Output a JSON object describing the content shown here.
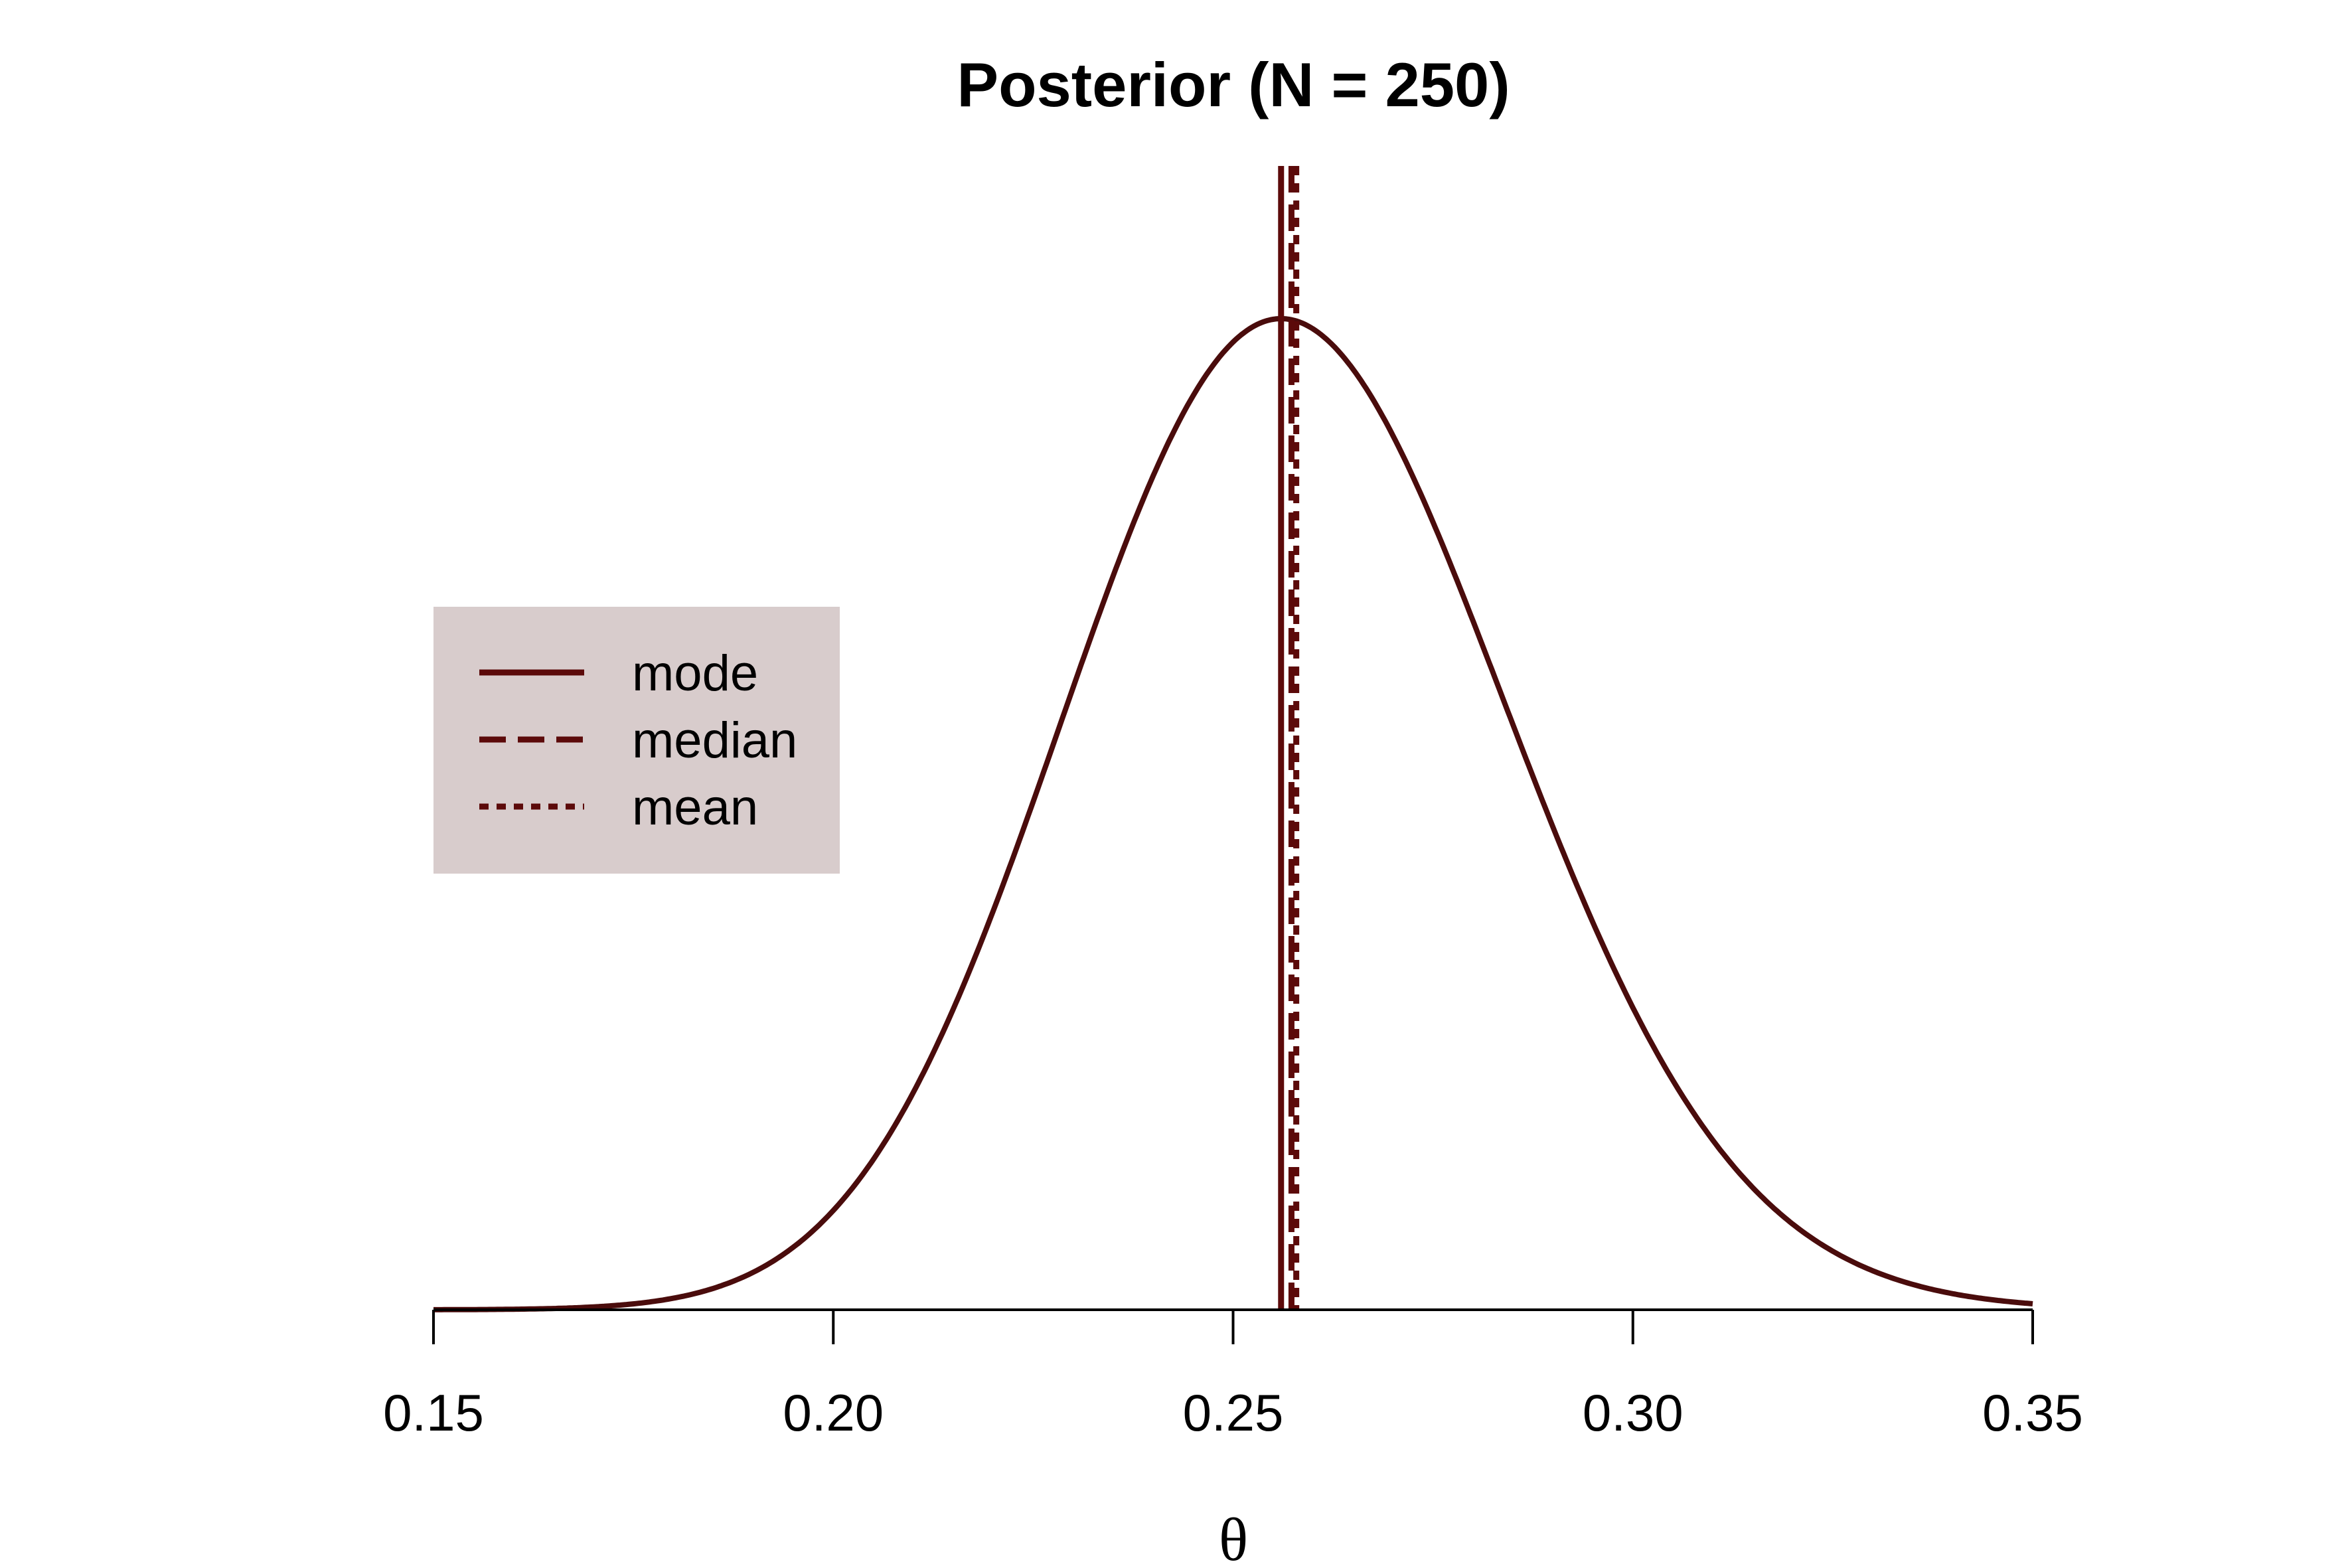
{
  "chart_data": {
    "type": "line",
    "title": "Posterior (N = 250)",
    "xlabel": "θ",
    "ylabel": "",
    "xlim": [
      0.15,
      0.35
    ],
    "x_ticks": [
      0.15,
      0.2,
      0.25,
      0.3,
      0.35
    ],
    "x_tick_labels": [
      "0.15",
      "0.20",
      "0.25",
      "0.30",
      "0.35"
    ],
    "y_axis_shown": false,
    "grid": false,
    "series": [
      {
        "type": "density-curve",
        "distribution": "beta",
        "alpha": 65,
        "beta": 187,
        "color": "#4a0c0c"
      }
    ],
    "vertical_lines": [
      {
        "name": "mode",
        "x": 0.256,
        "style": "solid",
        "color": "#5c0a0a"
      },
      {
        "name": "median",
        "x": 0.2573,
        "style": "dashed",
        "color": "#5c0a0a"
      },
      {
        "name": "mean",
        "x": 0.2579,
        "style": "dotted",
        "color": "#5c0a0a"
      }
    ],
    "legend": {
      "position": "left",
      "background": "#d8cccc",
      "entries": [
        {
          "label": "mode",
          "style": "solid"
        },
        {
          "label": "median",
          "style": "dashed"
        },
        {
          "label": "mean",
          "style": "dotted"
        }
      ]
    }
  }
}
